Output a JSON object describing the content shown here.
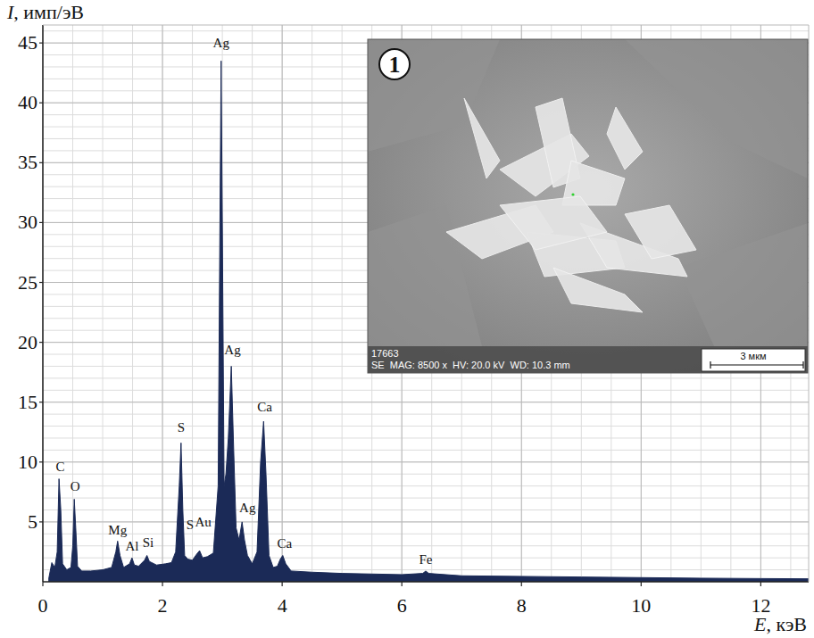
{
  "chart_data": {
    "type": "area",
    "x_label": "E, кэВ",
    "y_label": "I, имп/эВ",
    "x": [
      0.1,
      0.15,
      0.2,
      0.24,
      0.27,
      0.3,
      0.33,
      0.4,
      0.47,
      0.5,
      0.525,
      0.55,
      0.58,
      0.65,
      0.8,
      1.0,
      1.15,
      1.22,
      1.25,
      1.29,
      1.35,
      1.45,
      1.49,
      1.53,
      1.6,
      1.7,
      1.74,
      1.78,
      1.9,
      2.05,
      2.15,
      2.22,
      2.28,
      2.31,
      2.34,
      2.37,
      2.42,
      2.5,
      2.57,
      2.62,
      2.67,
      2.75,
      2.85,
      2.93,
      2.96,
      2.98,
      3.0,
      3.03,
      3.06,
      3.1,
      3.15,
      3.19,
      3.23,
      3.28,
      3.33,
      3.37,
      3.42,
      3.5,
      3.58,
      3.64,
      3.69,
      3.73,
      3.78,
      3.85,
      3.92,
      3.97,
      4.01,
      4.06,
      4.15,
      4.5,
      5.0,
      5.5,
      6.0,
      6.35,
      6.4,
      6.45,
      7.0,
      8.0,
      9.0,
      10.0,
      11.0,
      12.0,
      12.8
    ],
    "values": [
      0.3,
      1.6,
      1.2,
      2.5,
      8.6,
      6.0,
      1.5,
      1.0,
      1.2,
      3.0,
      6.9,
      4.5,
      1.3,
      0.9,
      0.9,
      1.0,
      1.2,
      2.5,
      3.4,
      2.2,
      1.2,
      1.5,
      2.0,
      1.4,
      1.3,
      1.8,
      2.2,
      1.7,
      1.4,
      1.5,
      1.6,
      2.5,
      8.0,
      11.6,
      6.0,
      2.2,
      1.9,
      1.8,
      2.3,
      2.6,
      2.0,
      2.1,
      2.4,
      8.0,
      30,
      43.5,
      30,
      8,
      9,
      12,
      18,
      11,
      4.5,
      3.5,
      5.0,
      3.5,
      2.2,
      1.5,
      2.5,
      10,
      13.4,
      9,
      2.2,
      1.2,
      1.3,
      1.9,
      2.2,
      1.5,
      0.9,
      0.8,
      0.7,
      0.65,
      0.6,
      0.7,
      0.9,
      0.7,
      0.5,
      0.45,
      0.4,
      0.35,
      0.3,
      0.27,
      0.25
    ],
    "color": "#1b2a57",
    "xlim": [
      0,
      12.8
    ],
    "ylim": [
      0,
      46.5
    ],
    "xticks": [
      0,
      2,
      4,
      6,
      8,
      10,
      12
    ],
    "yticks": [
      5,
      10,
      15,
      20,
      25,
      30,
      35,
      40,
      45
    ],
    "grid": true,
    "annotations": [
      {
        "text": "C",
        "x": 0.29,
        "y": 9.6
      },
      {
        "text": "O",
        "x": 0.54,
        "y": 8.0
      },
      {
        "text": "Mg",
        "x": 1.25,
        "y": 4.3
      },
      {
        "text": "Al",
        "x": 1.49,
        "y": 3.0
      },
      {
        "text": "Si",
        "x": 1.76,
        "y": 3.3
      },
      {
        "text": "S",
        "x": 2.31,
        "y": 12.9
      },
      {
        "text": "S",
        "x": 2.46,
        "y": 4.8
      },
      {
        "text": "Au",
        "x": 2.68,
        "y": 5.0
      },
      {
        "text": "Ag",
        "x": 2.98,
        "y": 45.0
      },
      {
        "text": "Ag",
        "x": 3.17,
        "y": 19.4
      },
      {
        "text": "Ag",
        "x": 3.42,
        "y": 6.2
      },
      {
        "text": "Ca",
        "x": 3.71,
        "y": 14.6
      },
      {
        "text": "Ca",
        "x": 4.04,
        "y": 3.2
      },
      {
        "text": "Fe",
        "x": 6.4,
        "y": 1.9
      }
    ],
    "inset": {
      "panel_label": "1",
      "image_id": "17663",
      "info": "SE  MAG: 8500 x  HV: 20.0 kV  WD: 10.3 mm",
      "scale_bar": "3 мкм"
    }
  }
}
